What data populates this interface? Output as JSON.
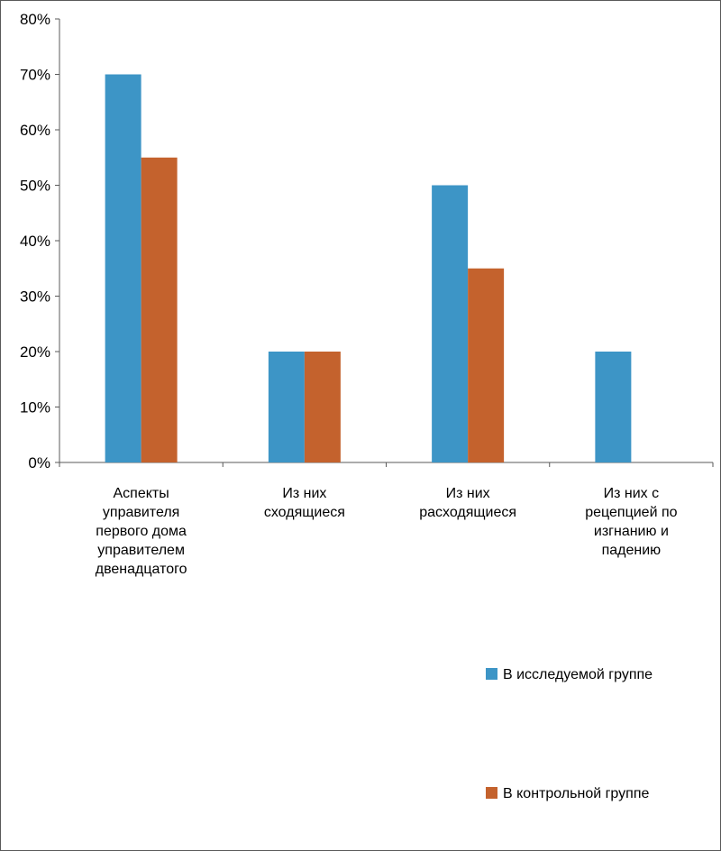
{
  "chart_data": {
    "type": "bar",
    "title": "",
    "xlabel": "",
    "ylabel": "",
    "categories": [
      "Аспекты управителя первого дома управителем двенадцатого",
      "Из них сходящиеся",
      "Из них расходящиеся",
      "Из них с рецепцией по изгнанию и падению"
    ],
    "category_lines": [
      [
        "Аспекты",
        "управителя",
        "первого дома",
        "управителем",
        "двенадцатого"
      ],
      [
        "Из них",
        "сходящиеся"
      ],
      [
        "Из них",
        "расходящиеся"
      ],
      [
        "Из них с",
        "рецепцией по",
        "изгнанию и",
        "падению"
      ]
    ],
    "series": [
      {
        "name": "В исследуемой группе",
        "color": "#3D95C6",
        "values": [
          70,
          20,
          50,
          20
        ]
      },
      {
        "name": "В контрольной группе",
        "color": "#C4622D",
        "values": [
          55,
          20,
          35,
          0
        ]
      }
    ],
    "ylim": [
      0,
      80
    ],
    "yticks": [
      0,
      10,
      20,
      30,
      40,
      50,
      60,
      70,
      80
    ],
    "ytick_labels": [
      "0%",
      "10%",
      "20%",
      "30%",
      "40%",
      "50%",
      "60%",
      "70%",
      "80%"
    ],
    "grid": false,
    "legend_position": "bottom-right",
    "axis_color": "#595959",
    "text_color": "#000000"
  }
}
